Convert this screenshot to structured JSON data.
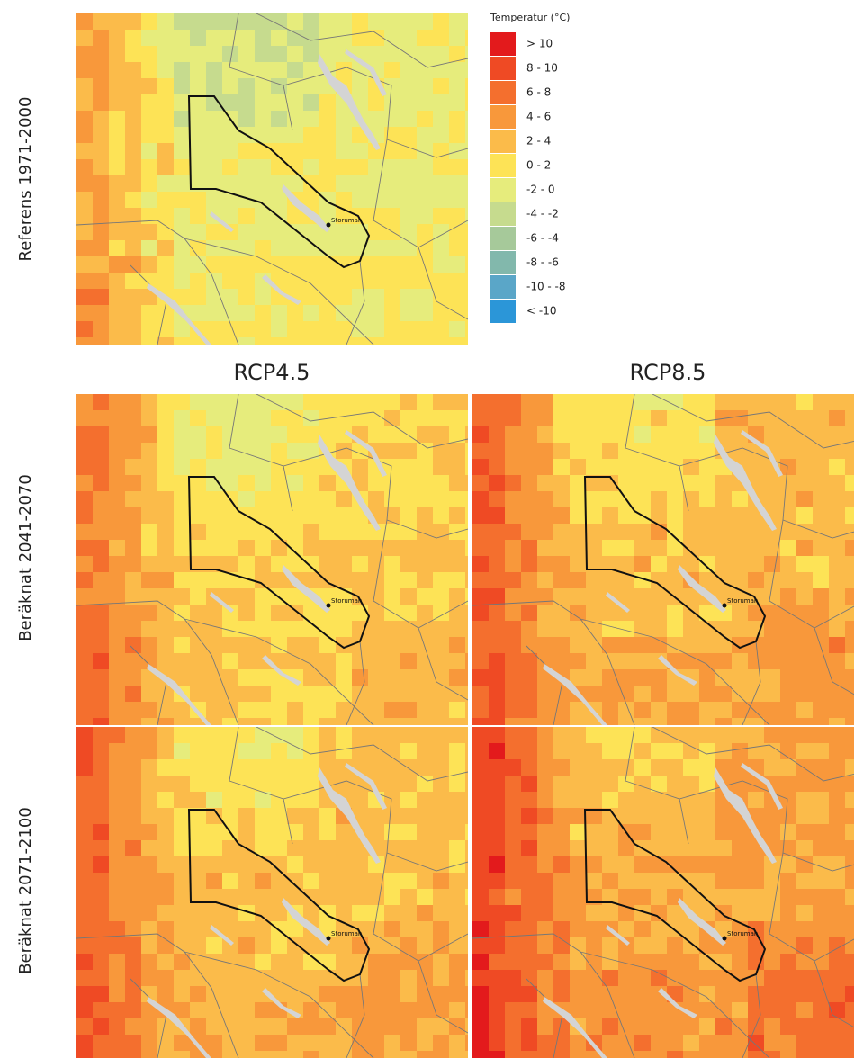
{
  "legend": {
    "title": "Temperatur (°C)",
    "items": [
      {
        "label": "> 10",
        "color": "#e31a1c"
      },
      {
        "label": "8 - 10",
        "color": "#ef4a24"
      },
      {
        "label": "6 - 8",
        "color": "#f46f2e"
      },
      {
        "label": "4 - 6",
        "color": "#f8983b"
      },
      {
        "label": "2 - 4",
        "color": "#fbbb4a"
      },
      {
        "label": "0 - 2",
        "color": "#fde356"
      },
      {
        "label": "-2 - 0",
        "color": "#e6ec7c"
      },
      {
        "label": "-4 - -2",
        "color": "#c6db8e"
      },
      {
        "label": "-6 - -4",
        "color": "#a6c99a"
      },
      {
        "label": "-8 - -6",
        "color": "#82b8ac"
      },
      {
        "label": "-10 - -8",
        "color": "#5aa6c8"
      },
      {
        "label": "< -10",
        "color": "#2b96d8"
      }
    ]
  },
  "columns": [
    "RCP4.5",
    "RCP8.5"
  ],
  "rows": [
    "Referens 1971-2000",
    "Beräknat 2041-2070",
    "Beräknat 2071-2100"
  ],
  "place_label": "Storuman"
}
